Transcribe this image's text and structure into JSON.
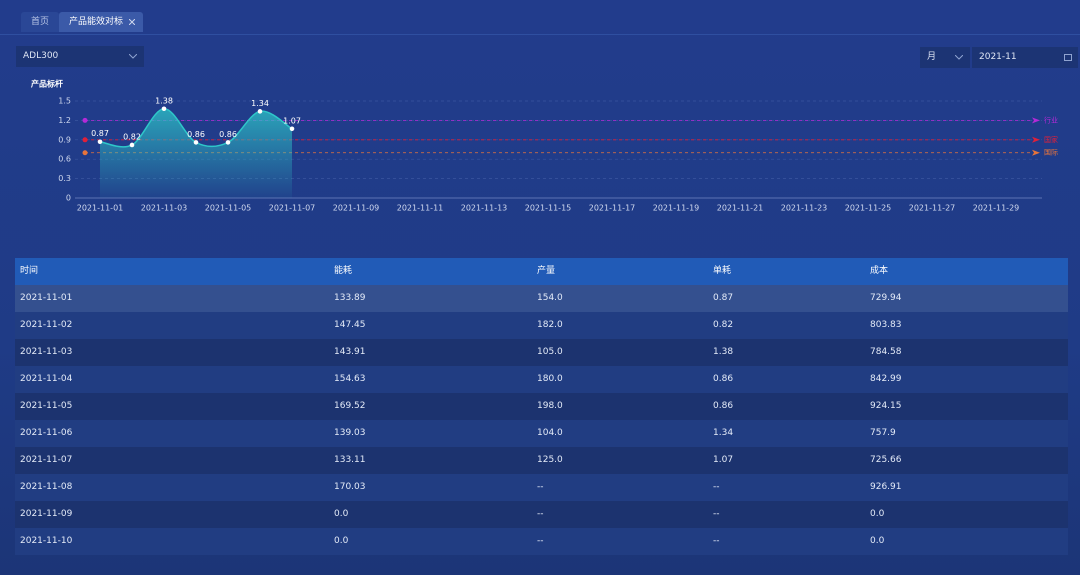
{
  "tabs": [
    "首页",
    "产品能效对标"
  ],
  "device_select": "ADL300",
  "period_select": "月",
  "date": "2021-11",
  "chart_data": {
    "type": "line",
    "title": "产品标杆",
    "categories": [
      "2021-11-01",
      null,
      "2021-11-03",
      null,
      "2021-11-05",
      null,
      "2021-11-07",
      null,
      "2021-11-09",
      null,
      "2021-11-11",
      null,
      "2021-11-13",
      null,
      "2021-11-15",
      null,
      "2021-11-17",
      null,
      "2021-11-19",
      null,
      "2021-11-21",
      null,
      "2021-11-23",
      null,
      "2021-11-25",
      null,
      "2021-11-27",
      null,
      "2021-11-29",
      null
    ],
    "values": [
      0.87,
      0.82,
      1.38,
      0.86,
      0.86,
      1.34,
      1.07,
      null,
      null,
      null,
      null,
      null,
      null,
      null,
      null,
      null,
      null,
      null,
      null,
      null,
      null,
      null,
      null,
      null,
      null,
      null,
      null,
      null,
      null,
      null
    ],
    "color": "#2ec7c9",
    "ylim": [
      0,
      1.5
    ],
    "yticks": [
      0,
      0.3,
      0.6,
      0.9,
      1.2,
      1.5
    ],
    "grid": true,
    "mark_lines": [
      {
        "name": "行业",
        "value": 1.2,
        "color": "#b42ad8"
      },
      {
        "name": "国家",
        "value": 0.9,
        "color": "#e0203a"
      },
      {
        "name": "国际",
        "value": 0.7,
        "color": "#e8743b"
      }
    ]
  },
  "table": {
    "columns": [
      "时间",
      "能耗",
      "产量",
      "单耗",
      "成本"
    ],
    "rows": [
      [
        "2021-11-01",
        "133.89",
        "154.0",
        "0.87",
        "729.94"
      ],
      [
        "2021-11-02",
        "147.45",
        "182.0",
        "0.82",
        "803.83"
      ],
      [
        "2021-11-03",
        "143.91",
        "105.0",
        "1.38",
        "784.58"
      ],
      [
        "2021-11-04",
        "154.63",
        "180.0",
        "0.86",
        "842.99"
      ],
      [
        "2021-11-05",
        "169.52",
        "198.0",
        "0.86",
        "924.15"
      ],
      [
        "2021-11-06",
        "139.03",
        "104.0",
        "1.34",
        "757.9"
      ],
      [
        "2021-11-07",
        "133.11",
        "125.0",
        "1.07",
        "725.66"
      ],
      [
        "2021-11-08",
        "170.03",
        "--",
        "--",
        "926.91"
      ],
      [
        "2021-11-09",
        "0.0",
        "--",
        "--",
        "0.0"
      ],
      [
        "2021-11-10",
        "0.0",
        "--",
        "--",
        "0.0"
      ]
    ]
  }
}
